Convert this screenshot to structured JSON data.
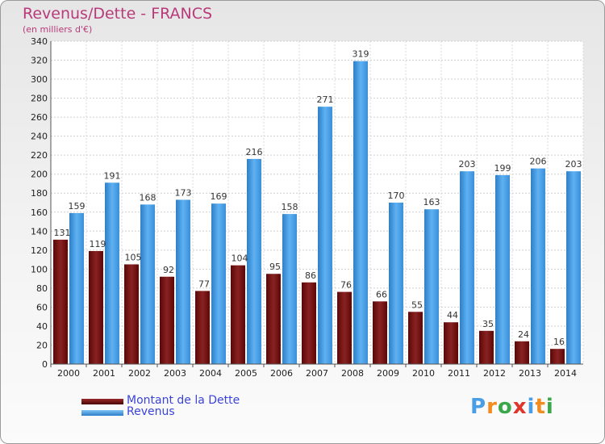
{
  "chart_data": {
    "type": "bar",
    "title": "Revenus/Dette - FRANCS",
    "subtitle": "(en milliers d'€)",
    "categories": [
      "2000",
      "2001",
      "2002",
      "2003",
      "2004",
      "2005",
      "2006",
      "2007",
      "2008",
      "2009",
      "2010",
      "2011",
      "2012",
      "2013",
      "2014"
    ],
    "series": [
      {
        "name": "Montant de la Dette",
        "color": "#7a1616",
        "values": [
          131,
          119,
          105,
          92,
          77,
          104,
          95,
          86,
          76,
          66,
          55,
          44,
          35,
          24,
          16
        ]
      },
      {
        "name": "Revenus",
        "color": "#4a9ee6",
        "values": [
          159,
          191,
          168,
          173,
          169,
          216,
          158,
          271,
          319,
          170,
          163,
          203,
          199,
          206,
          203
        ]
      }
    ],
    "ylim": [
      0,
      340
    ],
    "yticks": [
      0,
      20,
      40,
      60,
      80,
      100,
      120,
      140,
      160,
      180,
      200,
      220,
      240,
      260,
      280,
      300,
      320,
      340
    ],
    "grid": true,
    "legend_position": "bottom-left"
  },
  "logo": {
    "text": "Proxiti",
    "letters": [
      "P",
      "r",
      "o",
      "x",
      "i",
      "t",
      "i"
    ],
    "colors": [
      "#4a9ee6",
      "#f28c1e",
      "#3aa84a",
      "#e0352b",
      "#4a9ee6",
      "#f28c1e",
      "#3aa84a"
    ]
  }
}
